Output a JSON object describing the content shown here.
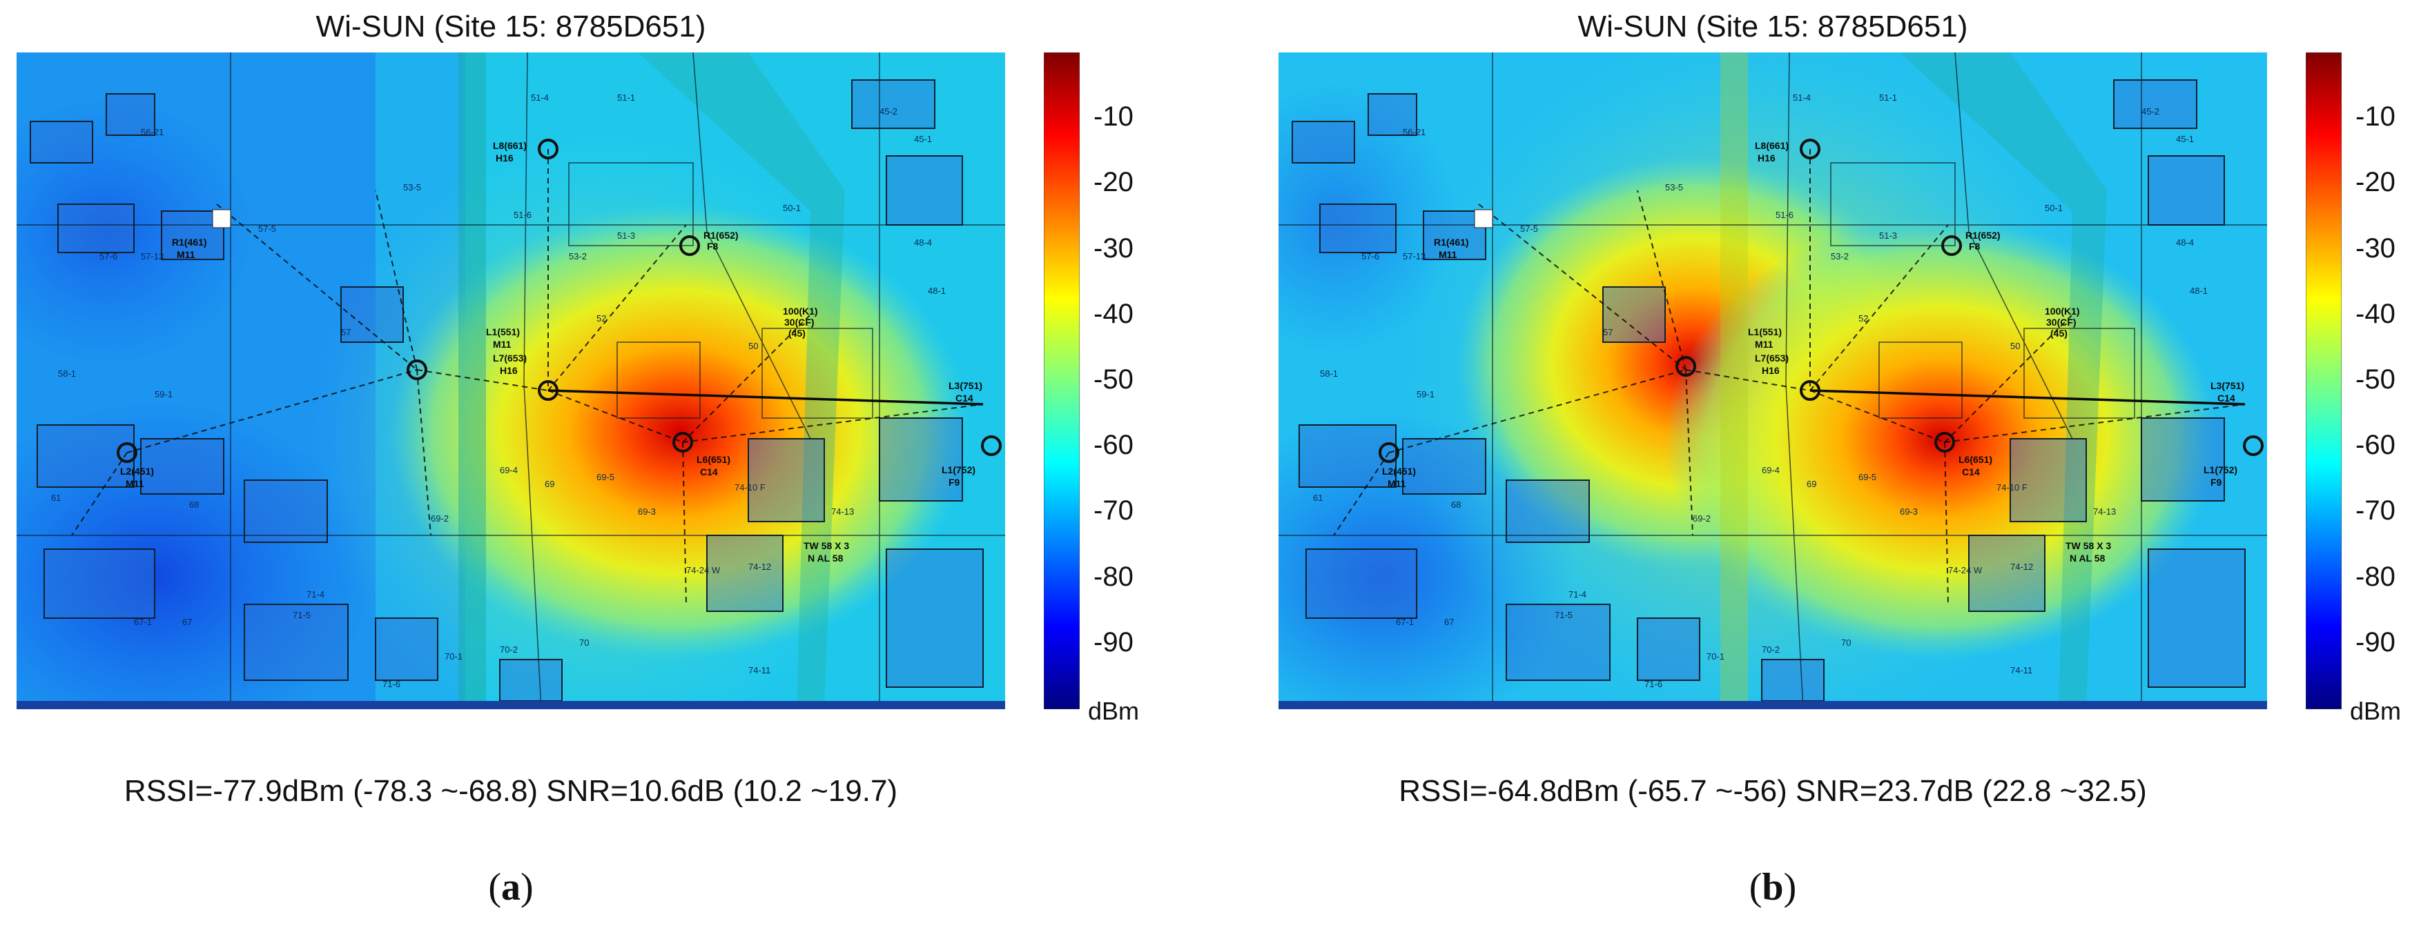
{
  "chart_data": [
    {
      "type": "heatmap",
      "title": "Wi-SUN (Site 15: 8785D651)",
      "colorbar": {
        "ticks": [
          -10,
          -20,
          -30,
          -40,
          -50,
          -60,
          -70,
          -80,
          -90
        ],
        "unit": "dBm",
        "range": [
          -100,
          0
        ],
        "colormap": "jet"
      },
      "stats": "RSSI=-77.9dBm (-78.3 ~-68.8) SNR=10.6dB (10.2 ~19.7)",
      "subfigure": "(a)",
      "rssi": -77.9,
      "rssi_range": [
        -78.3,
        -68.8
      ],
      "snr": 10.6,
      "snr_range": [
        10.2,
        19.7
      ]
    },
    {
      "type": "heatmap",
      "title": "Wi-SUN (Site 15: 8785D651)",
      "colorbar": {
        "ticks": [
          -10,
          -20,
          -30,
          -40,
          -50,
          -60,
          -70,
          -80,
          -90
        ],
        "unit": "dBm",
        "range": [
          -100,
          0
        ],
        "colormap": "jet"
      },
      "stats": "RSSI=-64.8dBm (-65.7 ~-56) SNR=23.7dB (22.8 ~32.5)",
      "subfigure": "(b)",
      "rssi": -64.8,
      "rssi_range": [
        -65.7,
        -56
      ],
      "snr": 23.7,
      "snr_range": [
        22.8,
        32.5
      ]
    }
  ],
  "map_labels": {
    "nodes": [
      "L8(661)",
      "H16",
      "R1(652)",
      "F8",
      "R1(461)",
      "M11",
      "L1(551)",
      "M11",
      "L7(653)",
      "H16",
      "L6(651)",
      "C14",
      "L3(751)",
      "C14",
      "L1(752)",
      "F9",
      "L2(451)",
      "M11",
      "100(K1)",
      "30(CF)",
      "(45)",
      "TW 58 X 3",
      "N AL 58"
    ],
    "parcels": [
      "51-4",
      "51-1",
      "45-2",
      "45-1",
      "53-5",
      "51-6",
      "51-3",
      "53-2",
      "50-1",
      "48-4",
      "48-1",
      "57-5",
      "57-6",
      "57-13",
      "57",
      "52",
      "50",
      "69-4",
      "69",
      "69-5",
      "69-3",
      "69-2",
      "74-10 F",
      "74-13",
      "74-12",
      "74-24 W",
      "71-4",
      "71-5",
      "70",
      "70-1",
      "70-2",
      "74-11",
      "71-6",
      "67-1",
      "67",
      "68",
      "61",
      "59-1",
      "58-1",
      "56-21"
    ]
  }
}
